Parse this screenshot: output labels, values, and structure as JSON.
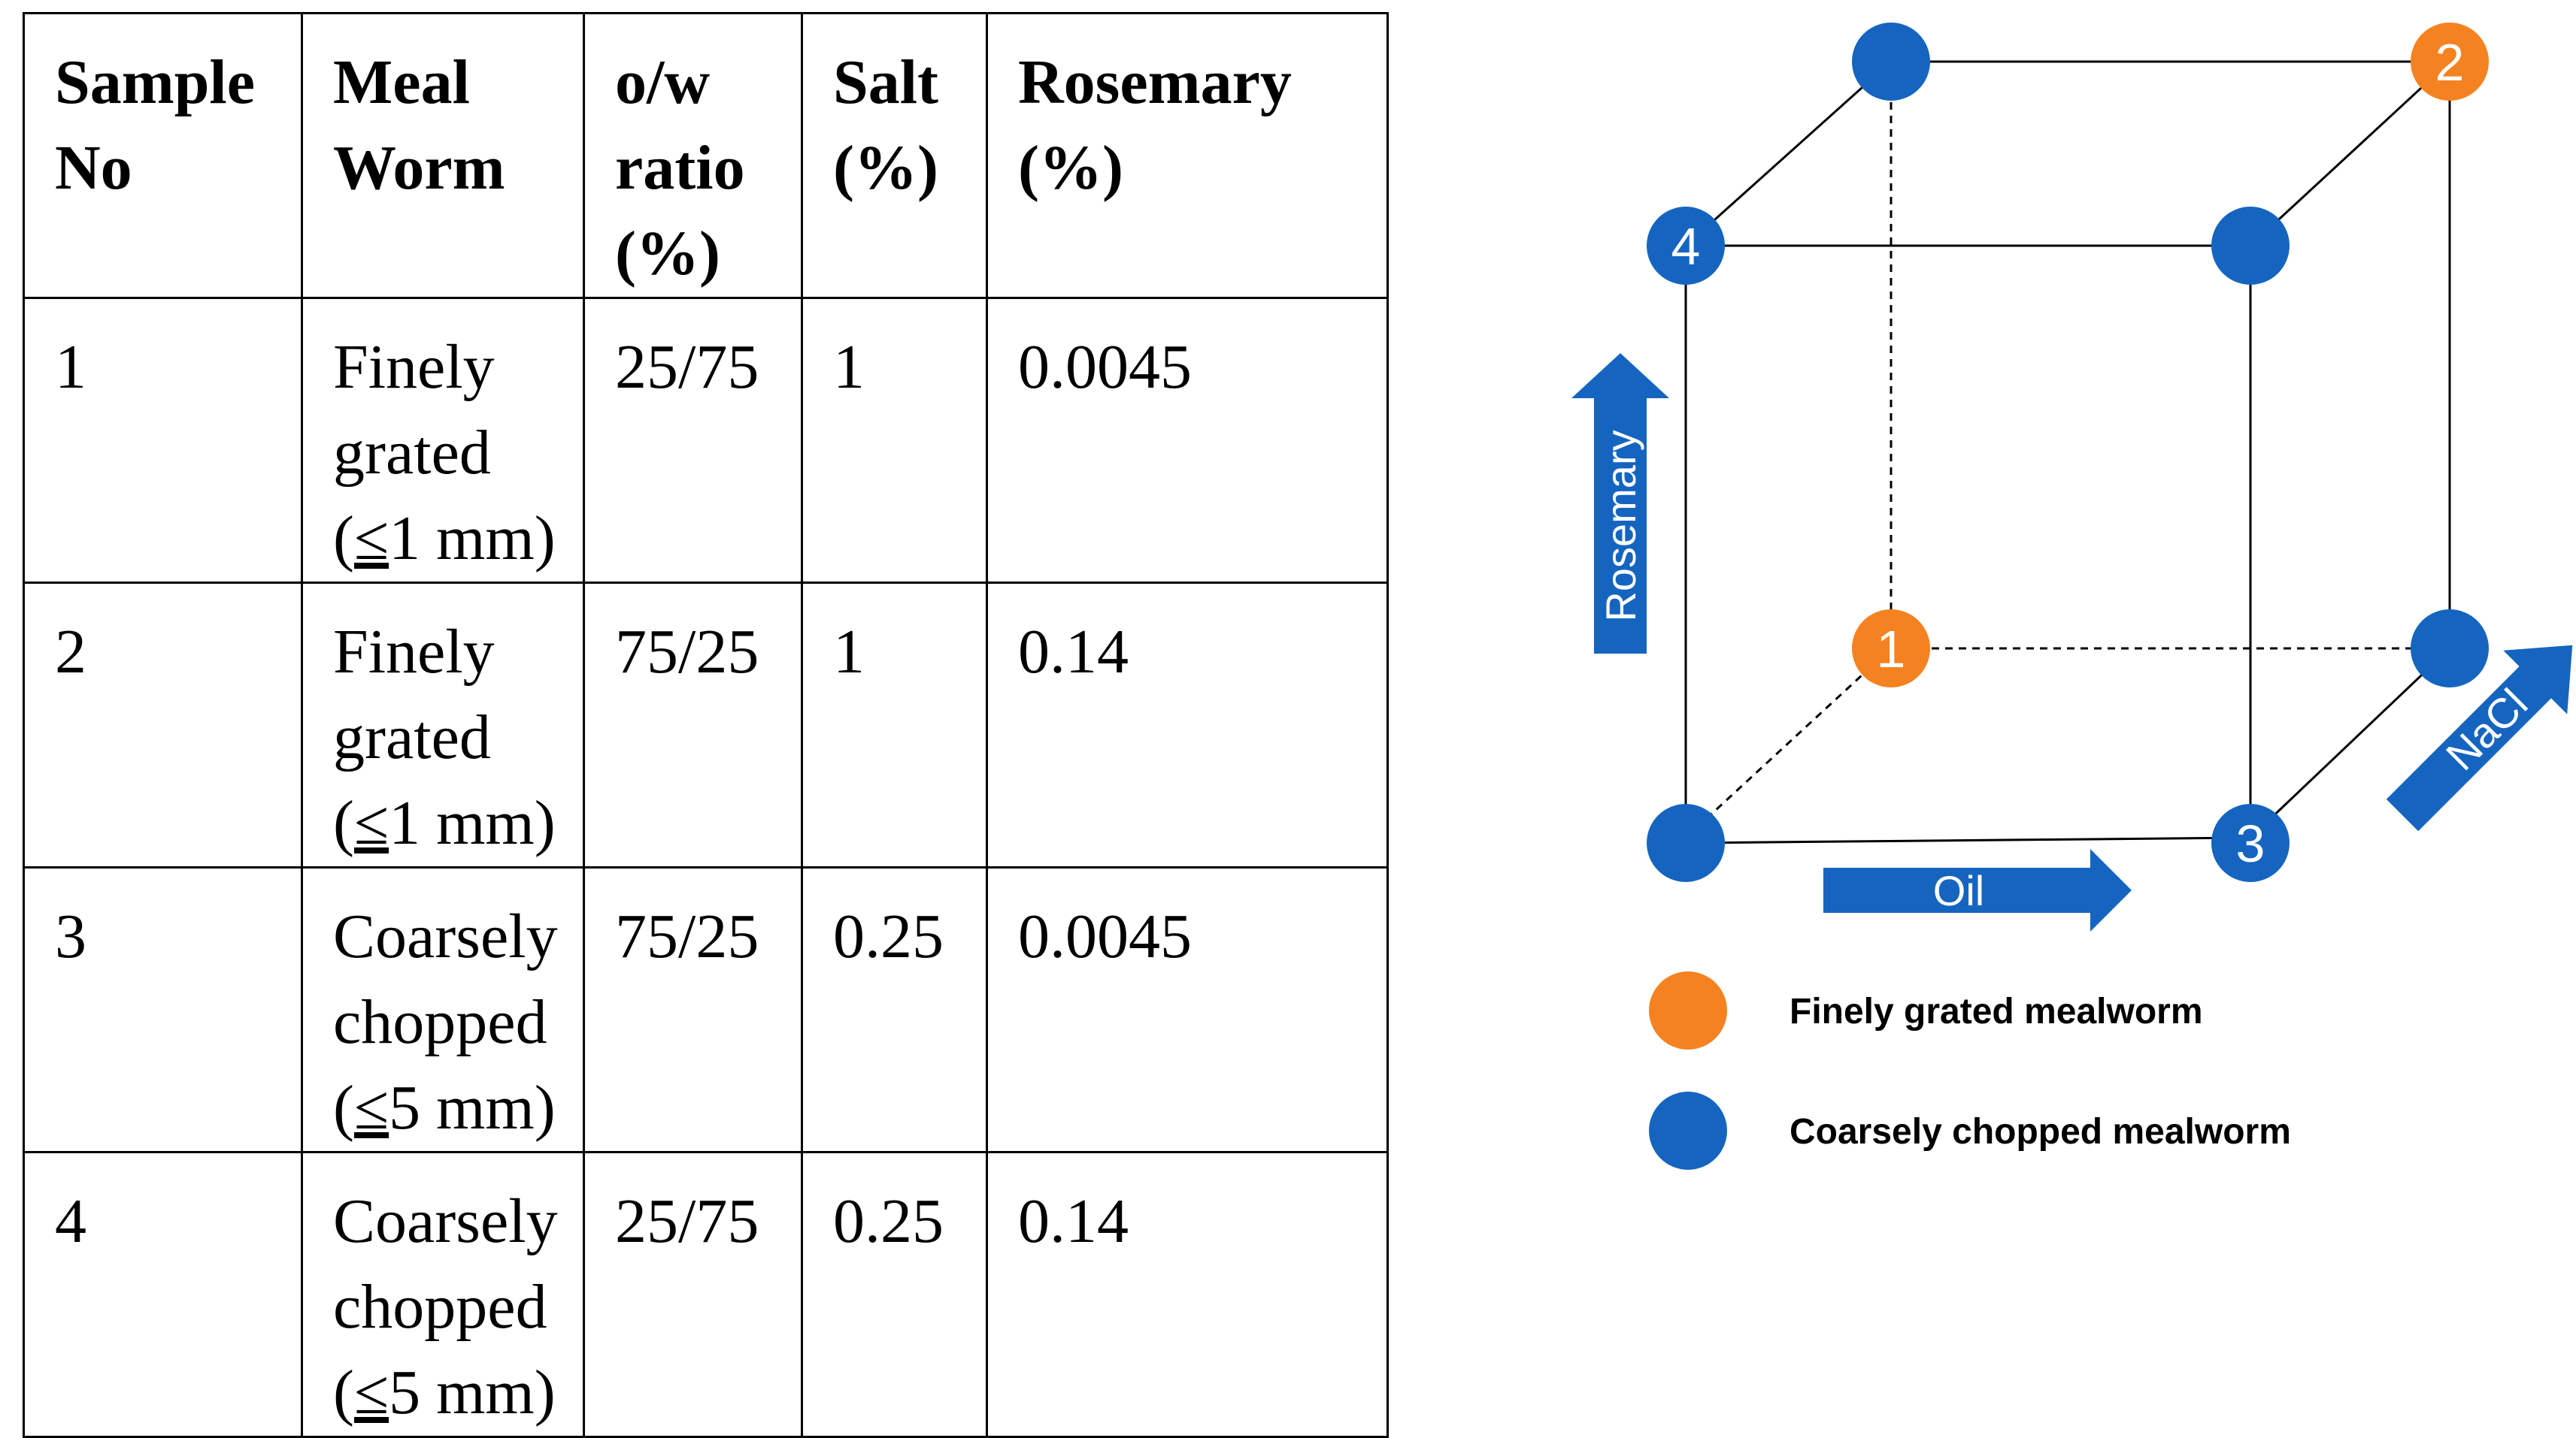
{
  "table": {
    "headers": [
      [
        "Sample",
        "No"
      ],
      [
        "Meal",
        "Worm"
      ],
      [
        "o/w",
        "ratio",
        "(%)"
      ],
      [
        "Salt",
        "(%)"
      ],
      [
        "Rosemary",
        "(%)"
      ]
    ],
    "rows": [
      {
        "no": "1",
        "worm": [
          "Finely",
          "grated"
        ],
        "worm_size_sym": "≤",
        "worm_size_rest": "1 mm)",
        "ratio": "25/75",
        "salt": "1",
        "rosemary": "0.0045"
      },
      {
        "no": "2",
        "worm": [
          "Finely",
          "grated"
        ],
        "worm_size_sym": "≤",
        "worm_size_rest": "1 mm)",
        "ratio": "75/25",
        "salt": "1",
        "rosemary": "0.14"
      },
      {
        "no": "3",
        "worm": [
          "Coarsely",
          "chopped"
        ],
        "worm_size_sym": "≤",
        "worm_size_rest": "5 mm)",
        "ratio": "75/25",
        "salt": "0.25",
        "rosemary": "0.0045"
      },
      {
        "no": "4",
        "worm": [
          "Coarsely",
          "chopped"
        ],
        "worm_size_sym": "≤",
        "worm_size_rest": "5 mm)",
        "ratio": "25/75",
        "salt": "0.25",
        "rosemary": "0.14"
      }
    ],
    "open_paren": "("
  },
  "diagram": {
    "colors": {
      "orange": "#F58220",
      "blue": "#1565C0"
    },
    "node_labels": {
      "n1": "1",
      "n2": "2",
      "n3": "3",
      "n4": "4"
    },
    "arrows": {
      "rosemary": "Rosemary",
      "oil": "Oil",
      "nacl": "NaCl"
    },
    "legend": {
      "orange_label": "Finely grated mealworm",
      "blue_label": "Coarsely chopped mealworm"
    }
  }
}
